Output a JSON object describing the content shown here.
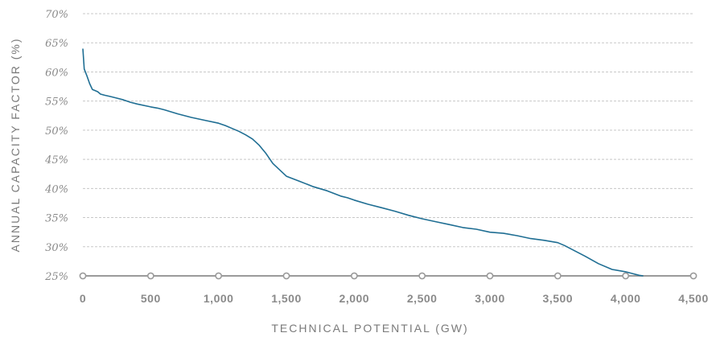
{
  "chart_data": {
    "type": "line",
    "xlabel": "TECHNICAL POTENTIAL (GW)",
    "ylabel": "ANNUAL CAPACITY FACTOR (%)",
    "xlim": [
      0,
      4500
    ],
    "ylim": [
      25,
      70
    ],
    "x_ticks": [
      "0",
      "500",
      "1,000",
      "1,500",
      "2,000",
      "2,500",
      "3,000",
      "3,500",
      "4,000",
      "4,500"
    ],
    "y_ticks": [
      "25%",
      "30%",
      "35%",
      "40%",
      "45%",
      "50%",
      "55%",
      "60%",
      "65%",
      "70%"
    ],
    "grid": "horizontal-dashed",
    "colors": {
      "line": "#1f6e93",
      "axis": "#9a9a9a",
      "grid": "#c8c8c8",
      "text": "#8a8a8a"
    },
    "series": [
      {
        "x": [
          0,
          10,
          30,
          50,
          70,
          90,
          110,
          130,
          160,
          200,
          250,
          300,
          350,
          400,
          500,
          550,
          600,
          700,
          800,
          900,
          1000,
          1050,
          1100,
          1150,
          1200,
          1250,
          1300,
          1350,
          1400,
          1450,
          1500,
          1600,
          1700,
          1800,
          1900,
          1950,
          2000,
          2100,
          2200,
          2300,
          2400,
          2500,
          2600,
          2700,
          2800,
          2900,
          3000,
          3100,
          3200,
          3300,
          3400,
          3500,
          3550,
          3600,
          3700,
          3800,
          3900,
          4000,
          4050,
          4100,
          4130
        ],
        "y": [
          64,
          60.5,
          59.3,
          58,
          57,
          56.8,
          56.6,
          56.2,
          56,
          55.8,
          55.5,
          55.2,
          54.8,
          54.5,
          54,
          53.8,
          53.5,
          52.8,
          52.2,
          51.7,
          51.2,
          50.8,
          50.3,
          49.8,
          49.2,
          48.5,
          47.4,
          46,
          44.3,
          43.2,
          42.1,
          41.2,
          40.3,
          39.6,
          38.7,
          38.4,
          38,
          37.3,
          36.7,
          36.1,
          35.4,
          34.8,
          34.3,
          33.8,
          33.3,
          33,
          32.5,
          32.3,
          31.9,
          31.4,
          31.1,
          30.7,
          30.2,
          29.6,
          28.4,
          27.1,
          26.1,
          25.7,
          25.4,
          25.1,
          25
        ]
      }
    ]
  }
}
